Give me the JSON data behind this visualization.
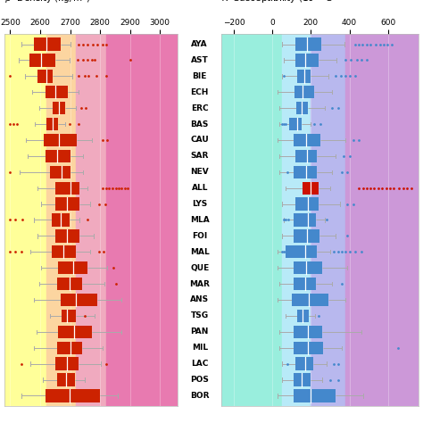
{
  "labels": [
    "AYA",
    "AST",
    "BIE",
    "ECH",
    "ERC",
    "BAS",
    "CAU",
    "SAR",
    "NEV",
    "ALL",
    "LYS",
    "MLA",
    "FOI",
    "MAL",
    "QUE",
    "MAR",
    "ANS",
    "TSG",
    "PAN",
    "MIL",
    "LAC",
    "POS",
    "BOR"
  ],
  "density": {
    "xlim": [
      2480,
      3060
    ],
    "xticks": [
      2500,
      2600,
      2700,
      2800,
      2900,
      3000
    ],
    "title_sym": "ρ",
    "title_rest": " Density (kg/m³)",
    "boxes": [
      {
        "q1": 2580,
        "med": 2622,
        "q3": 2668,
        "lo": 2536,
        "hi": 2702,
        "fliers": [
          2728,
          2742,
          2758,
          2775,
          2792,
          2808,
          2820
        ]
      },
      {
        "q1": 2565,
        "med": 2602,
        "q3": 2652,
        "lo": 2528,
        "hi": 2698,
        "fliers": [
          2725,
          2742,
          2758,
          2772,
          2782,
          2900
        ]
      },
      {
        "q1": 2592,
        "med": 2622,
        "q3": 2642,
        "lo": 2548,
        "hi": 2708,
        "fliers": [
          2498,
          2728,
          2748,
          2762,
          2788,
          2820
        ]
      },
      {
        "q1": 2618,
        "med": 2652,
        "q3": 2692,
        "lo": 2572,
        "hi": 2728,
        "fliers": []
      },
      {
        "q1": 2642,
        "med": 2662,
        "q3": 2682,
        "lo": 2598,
        "hi": 2718,
        "fliers": [
          2738,
          2752
        ]
      },
      {
        "q1": 2622,
        "med": 2642,
        "q3": 2660,
        "lo": 2582,
        "hi": 2682,
        "fliers": [
          2498,
          2510,
          2522,
          2698,
          2728
        ]
      },
      {
        "q1": 2612,
        "med": 2662,
        "q3": 2722,
        "lo": 2552,
        "hi": 2772,
        "fliers": [
          2808,
          2822
        ]
      },
      {
        "q1": 2618,
        "med": 2658,
        "q3": 2702,
        "lo": 2558,
        "hi": 2742,
        "fliers": []
      },
      {
        "q1": 2632,
        "med": 2670,
        "q3": 2702,
        "lo": 2532,
        "hi": 2742,
        "fliers": [
          2498
        ]
      },
      {
        "q1": 2652,
        "med": 2702,
        "q3": 2732,
        "lo": 2592,
        "hi": 2758,
        "fliers": [
          2808,
          2820,
          2830,
          2842,
          2852,
          2862,
          2872,
          2882,
          2892
        ]
      },
      {
        "q1": 2652,
        "med": 2688,
        "q3": 2730,
        "lo": 2602,
        "hi": 2768,
        "fliers": [
          2798,
          2818
        ]
      },
      {
        "q1": 2638,
        "med": 2668,
        "q3": 2698,
        "lo": 2580,
        "hi": 2732,
        "fliers": [
          2498,
          2518,
          2540,
          2758
        ]
      },
      {
        "q1": 2650,
        "med": 2690,
        "q3": 2730,
        "lo": 2590,
        "hi": 2780,
        "fliers": []
      },
      {
        "q1": 2638,
        "med": 2678,
        "q3": 2718,
        "lo": 2568,
        "hi": 2768,
        "fliers": [
          2498,
          2516,
          2536,
          2798,
          2812
        ]
      },
      {
        "q1": 2660,
        "med": 2710,
        "q3": 2758,
        "lo": 2602,
        "hi": 2822,
        "fliers": [
          2845
        ]
      },
      {
        "q1": 2658,
        "med": 2698,
        "q3": 2740,
        "lo": 2598,
        "hi": 2815,
        "fliers": [
          2852
        ]
      },
      {
        "q1": 2668,
        "med": 2718,
        "q3": 2790,
        "lo": 2580,
        "hi": 2872,
        "fliers": []
      },
      {
        "q1": 2670,
        "med": 2688,
        "q3": 2718,
        "lo": 2632,
        "hi": 2782,
        "fliers": [
          2748
        ]
      },
      {
        "q1": 2660,
        "med": 2712,
        "q3": 2772,
        "lo": 2588,
        "hi": 2872,
        "fliers": []
      },
      {
        "q1": 2658,
        "med": 2700,
        "q3": 2740,
        "lo": 2580,
        "hi": 2808,
        "fliers": []
      },
      {
        "q1": 2650,
        "med": 2688,
        "q3": 2728,
        "lo": 2568,
        "hi": 2802,
        "fliers": [
          2538,
          2820
        ]
      },
      {
        "q1": 2658,
        "med": 2686,
        "q3": 2716,
        "lo": 2610,
        "hi": 2748,
        "fliers": []
      },
      {
        "q1": 2618,
        "med": 2698,
        "q3": 2800,
        "lo": 2538,
        "hi": 2858,
        "fliers": []
      }
    ],
    "bg_colors": [
      "#ffff99",
      "#fcd5a0",
      "#f0aabf",
      "#e87ab0"
    ],
    "bg_stops": [
      2480,
      2620,
      2720,
      2820,
      3060
    ],
    "box_color": "#cc2200",
    "median_color": "#660000",
    "flier_color": "#cc2200",
    "whisker_color": "#aaaaaa"
  },
  "susceptibility": {
    "xlim": [
      -265,
      760
    ],
    "xticks": [
      -200,
      0,
      200,
      400,
      600
    ],
    "title_sym": "K",
    "title_rest": " Susceptibility (10⁻⁶ S",
    "boxes": [
      {
        "q1": 120,
        "med": 178,
        "q3": 252,
        "lo": 48,
        "hi": 372,
        "fliers": [
          430,
          450,
          468,
          488,
          508,
          535,
          558,
          578,
          598,
          618
        ]
      },
      {
        "q1": 118,
        "med": 170,
        "q3": 242,
        "lo": 58,
        "hi": 332,
        "fliers": [
          380,
          408,
          438,
          460,
          488
        ]
      },
      {
        "q1": 128,
        "med": 164,
        "q3": 198,
        "lo": 48,
        "hi": 290,
        "fliers": [
          60,
          328,
          356,
          378,
          400,
          430
        ]
      },
      {
        "q1": 114,
        "med": 158,
        "q3": 215,
        "lo": 28,
        "hi": 310,
        "fliers": []
      },
      {
        "q1": 124,
        "med": 154,
        "q3": 184,
        "lo": 38,
        "hi": 270,
        "fliers": [
          310,
          340
        ]
      },
      {
        "q1": 88,
        "med": 128,
        "q3": 152,
        "lo": 38,
        "hi": 198,
        "fliers": [
          48,
          60,
          70,
          218,
          250
        ]
      },
      {
        "q1": 108,
        "med": 174,
        "q3": 250,
        "lo": 28,
        "hi": 380,
        "fliers": [
          420,
          450
        ]
      },
      {
        "q1": 118,
        "med": 178,
        "q3": 230,
        "lo": 38,
        "hi": 330,
        "fliers": [
          370,
          400
        ]
      },
      {
        "q1": 108,
        "med": 174,
        "q3": 230,
        "lo": 38,
        "hi": 310,
        "fliers": [
          78,
          360,
          390
        ]
      },
      {
        "q1": 156,
        "med": 200,
        "q3": 240,
        "lo": 68,
        "hi": 300,
        "fliers": [
          450,
          470,
          490,
          510,
          528,
          548,
          570,
          590,
          610,
          630,
          656,
          678,
          700,
          720
        ]
      },
      {
        "q1": 118,
        "med": 184,
        "q3": 240,
        "lo": 48,
        "hi": 350,
        "fliers": [
          390,
          420
        ]
      },
      {
        "q1": 108,
        "med": 184,
        "q3": 228,
        "lo": 58,
        "hi": 270,
        "fliers": [
          58,
          70,
          80,
          280
        ]
      },
      {
        "q1": 108,
        "med": 178,
        "q3": 246,
        "lo": 48,
        "hi": 330,
        "fliers": [
          390
        ]
      },
      {
        "q1": 68,
        "med": 168,
        "q3": 230,
        "lo": 28,
        "hi": 298,
        "fliers": [
          48,
          58,
          68,
          318,
          340,
          360,
          380,
          400,
          430,
          460
        ]
      },
      {
        "q1": 108,
        "med": 174,
        "q3": 260,
        "lo": 28,
        "hi": 390,
        "fliers": []
      },
      {
        "q1": 108,
        "med": 168,
        "q3": 224,
        "lo": 38,
        "hi": 310,
        "fliers": [
          360
        ]
      },
      {
        "q1": 102,
        "med": 190,
        "q3": 290,
        "lo": 28,
        "hi": 380,
        "fliers": []
      },
      {
        "q1": 128,
        "med": 158,
        "q3": 190,
        "lo": 68,
        "hi": 220,
        "fliers": [
          240
        ]
      },
      {
        "q1": 108,
        "med": 184,
        "q3": 260,
        "lo": 38,
        "hi": 460,
        "fliers": []
      },
      {
        "q1": 108,
        "med": 184,
        "q3": 265,
        "lo": 38,
        "hi": 360,
        "fliers": [
          650
        ]
      },
      {
        "q1": 118,
        "med": 168,
        "q3": 214,
        "lo": 48,
        "hi": 280,
        "fliers": [
          78,
          320,
          340
        ]
      },
      {
        "q1": 112,
        "med": 154,
        "q3": 196,
        "lo": 48,
        "hi": 260,
        "fliers": [
          300,
          340
        ]
      },
      {
        "q1": 108,
        "med": 200,
        "q3": 330,
        "lo": 28,
        "hi": 470,
        "fliers": []
      }
    ],
    "bg_colors": [
      "#99eedd",
      "#b8eaf8",
      "#b8b8ee",
      "#cc98d8"
    ],
    "bg_stops": [
      -265,
      50,
      200,
      380,
      760
    ],
    "box_color": "#4488cc",
    "median_color": "#1144aa",
    "flier_color": "#4488cc",
    "all_box_color": "#cc1100",
    "all_flier_color": "#cc1100",
    "whisker_color": "#aaaaaa"
  },
  "fig_bg": "#ffffff",
  "all_label_idx": 9
}
